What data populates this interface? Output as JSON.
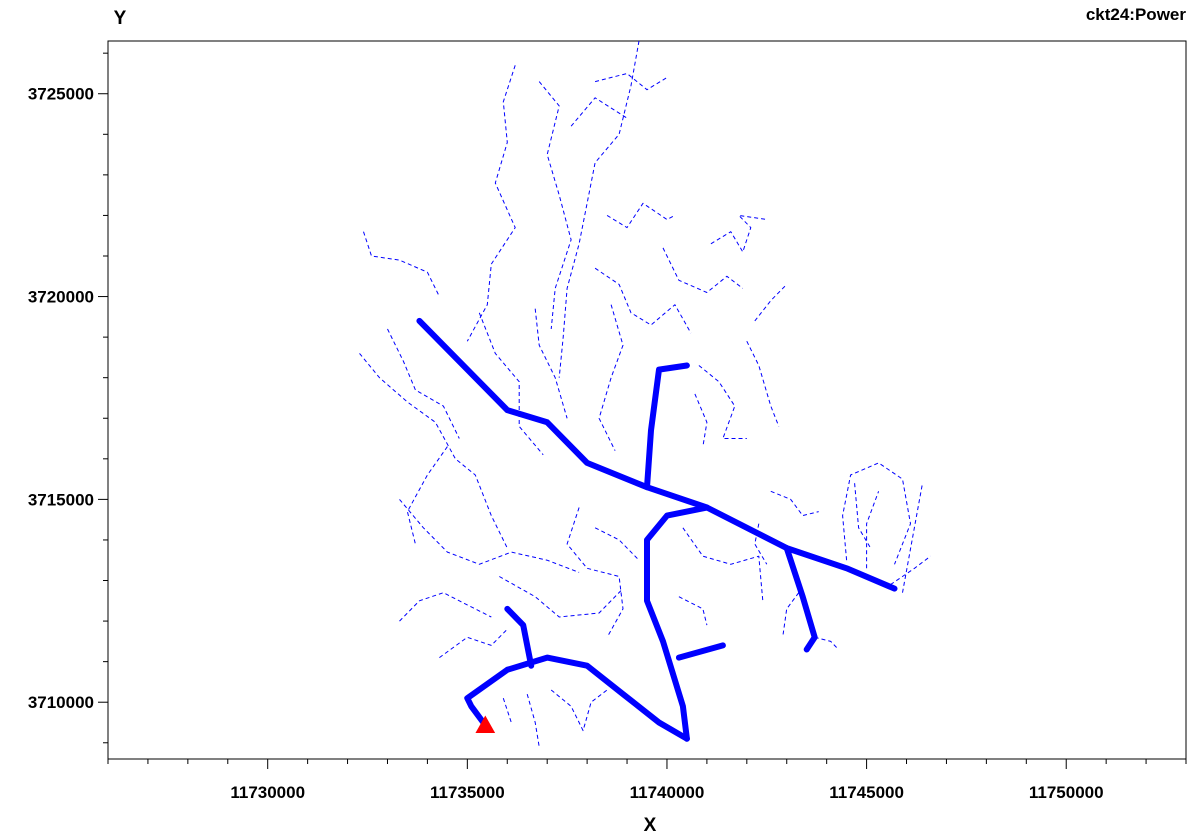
{
  "chart_data": {
    "type": "line",
    "title": "ckt24:Power",
    "xlabel": "X",
    "ylabel": "Y",
    "xlim": [
      11726000,
      11753000
    ],
    "ylim": [
      3708600,
      3726300
    ],
    "x_ticks": [
      11730000,
      11735000,
      11740000,
      11745000,
      11750000
    ],
    "x_tick_labels": [
      "11730000",
      "11735000",
      "11740000",
      "11745000",
      "11750000"
    ],
    "y_ticks": [
      3710000,
      3715000,
      3720000,
      3725000
    ],
    "y_tick_labels": [
      "3710000",
      "3715000",
      "3720000",
      "3725000"
    ],
    "grid": false,
    "series": [
      {
        "style": "thick",
        "color": "#0000ff",
        "width": 6,
        "lines": [
          [
            [
              11733800,
              3719400
            ],
            [
              11736000,
              3717200
            ],
            [
              11737000,
              3716900
            ],
            [
              11738000,
              3715900
            ],
            [
              11739500,
              3715300
            ],
            [
              11741000,
              3714800
            ],
            [
              11743000,
              3713800
            ],
            [
              11744500,
              3713300
            ],
            [
              11745700,
              3712800
            ]
          ],
          [
            [
              11739500,
              3715300
            ],
            [
              11739600,
              3716700
            ],
            [
              11739800,
              3718200
            ],
            [
              11740500,
              3718300
            ]
          ],
          [
            [
              11741000,
              3714800
            ],
            [
              11740000,
              3714600
            ],
            [
              11739500,
              3714000
            ],
            [
              11739500,
              3712500
            ],
            [
              11739900,
              3711500
            ],
            [
              11740400,
              3709900
            ],
            [
              11740500,
              3709100
            ]
          ],
          [
            [
              11740500,
              3709100
            ],
            [
              11739800,
              3709500
            ],
            [
              11738900,
              3710200
            ],
            [
              11738000,
              3710900
            ],
            [
              11737000,
              3711100
            ],
            [
              11736000,
              3710800
            ],
            [
              11735000,
              3710100
            ],
            [
              11735100,
              3709900
            ],
            [
              11735400,
              3709500
            ]
          ],
          [
            [
              11740300,
              3711100
            ],
            [
              11741400,
              3711400
            ]
          ],
          [
            [
              11743000,
              3713800
            ],
            [
              11743400,
              3712600
            ],
            [
              11743700,
              3711600
            ],
            [
              11743500,
              3711300
            ]
          ],
          [
            [
              11736600,
              3710900
            ],
            [
              11736400,
              3711900
            ],
            [
              11736000,
              3712300
            ]
          ]
        ]
      },
      {
        "style": "dashed",
        "color": "#0000ff",
        "width": 1,
        "lines": [
          [
            [
              11739300,
              3726300
            ],
            [
              11739100,
              3725200
            ],
            [
              11738800,
              3724000
            ],
            [
              11738200,
              3723300
            ],
            [
              11738000,
              3722300
            ],
            [
              11737800,
              3721300
            ],
            [
              11737500,
              3720200
            ],
            [
              11737400,
              3719000
            ],
            [
              11737300,
              3718000
            ]
          ],
          [
            [
              11736800,
              3725300
            ],
            [
              11737300,
              3724700
            ],
            [
              11737000,
              3723500
            ],
            [
              11737300,
              3722500
            ],
            [
              11737600,
              3721400
            ],
            [
              11737200,
              3720200
            ],
            [
              11737100,
              3719200
            ]
          ],
          [
            [
              11736200,
              3725700
            ],
            [
              11735900,
              3724800
            ],
            [
              11736000,
              3723800
            ],
            [
              11735700,
              3722800
            ],
            [
              11736200,
              3721700
            ],
            [
              11735600,
              3720800
            ],
            [
              11735500,
              3719800
            ],
            [
              11735000,
              3718900
            ]
          ],
          [
            [
              11738200,
              3725300
            ],
            [
              11739000,
              3725500
            ],
            [
              11739500,
              3725100
            ],
            [
              11740000,
              3725400
            ]
          ],
          [
            [
              11737600,
              3724200
            ],
            [
              11738200,
              3724900
            ],
            [
              11739000,
              3724400
            ]
          ],
          [
            [
              11738500,
              3722000
            ],
            [
              11739000,
              3721700
            ],
            [
              11739400,
              3722300
            ],
            [
              11740000,
              3721900
            ],
            [
              11740200,
              3722000
            ]
          ],
          [
            [
              11732400,
              3721600
            ],
            [
              11732600,
              3721000
            ],
            [
              11733300,
              3720900
            ],
            [
              11734000,
              3720600
            ],
            [
              11734300,
              3720000
            ]
          ],
          [
            [
              11732300,
              3718600
            ],
            [
              11732800,
              3718000
            ],
            [
              11733500,
              3717400
            ],
            [
              11734200,
              3716900
            ],
            [
              11734700,
              3716000
            ],
            [
              11735200,
              3715600
            ],
            [
              11735600,
              3714600
            ],
            [
              11736000,
              3713800
            ]
          ],
          [
            [
              11733000,
              3719200
            ],
            [
              11733400,
              3718400
            ],
            [
              11733700,
              3717700
            ],
            [
              11734400,
              3717300
            ],
            [
              11734800,
              3716500
            ]
          ],
          [
            [
              11733300,
              3715000
            ],
            [
              11733900,
              3714300
            ],
            [
              11734500,
              3713700
            ],
            [
              11735300,
              3713400
            ],
            [
              11736100,
              3713700
            ],
            [
              11737000,
              3713500
            ],
            [
              11737800,
              3713200
            ]
          ],
          [
            [
              11734500,
              3716300
            ],
            [
              11734000,
              3715600
            ],
            [
              11733500,
              3714700
            ],
            [
              11733700,
              3713900
            ]
          ],
          [
            [
              11735300,
              3719600
            ],
            [
              11735700,
              3718600
            ],
            [
              11736300,
              3717900
            ],
            [
              11736300,
              3716800
            ],
            [
              11736900,
              3716100
            ]
          ],
          [
            [
              11736700,
              3719700
            ],
            [
              11736800,
              3718800
            ],
            [
              11737200,
              3718000
            ],
            [
              11737500,
              3717000
            ]
          ],
          [
            [
              11738200,
              3720700
            ],
            [
              11738800,
              3720300
            ],
            [
              11739100,
              3719600
            ],
            [
              11739600,
              3719300
            ],
            [
              11740200,
              3719800
            ],
            [
              11740600,
              3719100
            ]
          ],
          [
            [
              11738600,
              3719800
            ],
            [
              11738900,
              3718800
            ],
            [
              11738600,
              3718000
            ],
            [
              11738300,
              3717000
            ],
            [
              11738700,
              3716200
            ]
          ],
          [
            [
              11739900,
              3721200
            ],
            [
              11740300,
              3720400
            ],
            [
              11741000,
              3720100
            ],
            [
              11741500,
              3720500
            ],
            [
              11741900,
              3720200
            ]
          ],
          [
            [
              11741100,
              3721300
            ],
            [
              11741600,
              3721600
            ],
            [
              11741900,
              3721100
            ],
            [
              11742100,
              3721700
            ],
            [
              11741800,
              3722000
            ],
            [
              11742500,
              3721900
            ]
          ],
          [
            [
              11740800,
              3718300
            ],
            [
              11741300,
              3717900
            ],
            [
              11741700,
              3717300
            ],
            [
              11741400,
              3716500
            ],
            [
              11742000,
              3716500
            ]
          ],
          [
            [
              11740700,
              3717600
            ],
            [
              11741000,
              3716900
            ],
            [
              11740900,
              3716300
            ]
          ],
          [
            [
              11742000,
              3718900
            ],
            [
              11742300,
              3718300
            ],
            [
              11742600,
              3717300
            ],
            [
              11742800,
              3716800
            ]
          ],
          [
            [
              11737800,
              3714800
            ],
            [
              11737500,
              3713900
            ],
            [
              11738000,
              3713300
            ],
            [
              11738800,
              3713100
            ],
            [
              11738900,
              3712300
            ],
            [
              11738500,
              3711600
            ]
          ],
          [
            [
              11735800,
              3713100
            ],
            [
              11736700,
              3712600
            ],
            [
              11737300,
              3712100
            ],
            [
              11738300,
              3712200
            ],
            [
              11738900,
              3712800
            ]
          ],
          [
            [
              11733300,
              3712000
            ],
            [
              11733800,
              3712500
            ],
            [
              11734400,
              3712700
            ],
            [
              11735000,
              3712400
            ],
            [
              11735600,
              3712100
            ]
          ],
          [
            [
              11734300,
              3711100
            ],
            [
              11735000,
              3711600
            ],
            [
              11735600,
              3711400
            ],
            [
              11736000,
              3711800
            ]
          ],
          [
            [
              11737100,
              3710300
            ],
            [
              11737600,
              3709900
            ],
            [
              11737900,
              3709300
            ],
            [
              11738100,
              3710000
            ],
            [
              11738500,
              3710300
            ]
          ],
          [
            [
              11736500,
              3710200
            ],
            [
              11736700,
              3709500
            ],
            [
              11736800,
              3708900
            ]
          ],
          [
            [
              11735900,
              3710100
            ],
            [
              11736100,
              3709500
            ]
          ],
          [
            [
              11738200,
              3714300
            ],
            [
              11738800,
              3714000
            ],
            [
              11739300,
              3713500
            ]
          ],
          [
            [
              11740400,
              3714300
            ],
            [
              11740900,
              3713600
            ],
            [
              11741600,
              3713400
            ],
            [
              11742300,
              3713600
            ],
            [
              11742400,
              3712500
            ]
          ],
          [
            [
              11740300,
              3712600
            ],
            [
              11740900,
              3712300
            ],
            [
              11741000,
              3711900
            ]
          ],
          [
            [
              11742600,
              3715200
            ],
            [
              11743100,
              3715000
            ],
            [
              11743400,
              3714600
            ],
            [
              11743800,
              3714700
            ]
          ],
          [
            [
              11742300,
              3714400
            ],
            [
              11742200,
              3713900
            ],
            [
              11742500,
              3713400
            ]
          ],
          [
            [
              11743300,
              3712700
            ],
            [
              11743000,
              3712300
            ],
            [
              11742900,
              3711600
            ]
          ],
          [
            [
              11743700,
              3711600
            ],
            [
              11744100,
              3711500
            ],
            [
              11744300,
              3711300
            ]
          ],
          [
            [
              11744500,
              3713500
            ],
            [
              11744400,
              3714600
            ],
            [
              11744600,
              3715600
            ],
            [
              11745300,
              3715900
            ],
            [
              11745900,
              3715500
            ],
            [
              11746100,
              3714400
            ],
            [
              11745700,
              3713400
            ]
          ],
          [
            [
              11745000,
              3713300
            ],
            [
              11745000,
              3714400
            ],
            [
              11745300,
              3715200
            ]
          ],
          [
            [
              11745600,
              3712900
            ],
            [
              11746200,
              3713300
            ],
            [
              11746600,
              3713600
            ]
          ],
          [
            [
              11745900,
              3712700
            ],
            [
              11746400,
              3715400
            ]
          ],
          [
            [
              11744700,
              3715400
            ],
            [
              11744800,
              3714300
            ],
            [
              11745100,
              3713800
            ]
          ],
          [
            [
              11742200,
              3719400
            ],
            [
              11742600,
              3719900
            ],
            [
              11743000,
              3720300
            ]
          ]
        ]
      }
    ],
    "source_marker": {
      "x": 11735450,
      "y": 3709450,
      "color": "#ff0000",
      "shape": "triangle"
    }
  }
}
